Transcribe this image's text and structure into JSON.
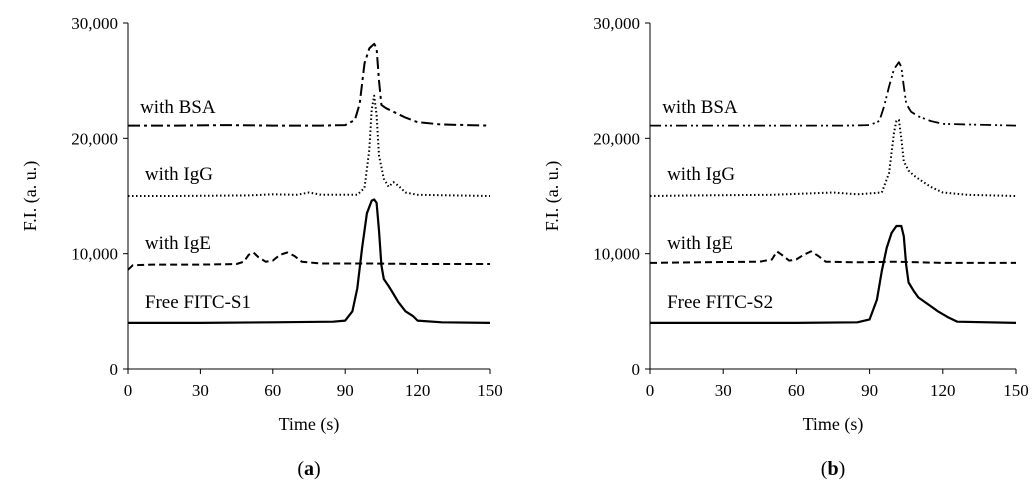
{
  "chart_data": [
    {
      "type": "line",
      "panel_label": "a",
      "xlabel": "Time (s)",
      "ylabel": "F.I. (a. u.)",
      "xlim": [
        0,
        150
      ],
      "ylim": [
        0,
        30000
      ],
      "xticks": [
        0,
        30,
        60,
        90,
        120,
        150
      ],
      "yticks": [
        0,
        10000,
        20000,
        30000
      ],
      "xtick_labels": [
        "0",
        "30",
        "60",
        "90",
        "120",
        "150"
      ],
      "ytick_labels": [
        "0",
        "10,000",
        "20,000",
        "30,000"
      ],
      "grid": false,
      "series": [
        {
          "name": "with BSA",
          "label_at": [
            5,
            22200
          ],
          "dash": "dashdot",
          "points": [
            [
              0,
              21100
            ],
            [
              20,
              21100
            ],
            [
              40,
              21150
            ],
            [
              60,
              21100
            ],
            [
              80,
              21100
            ],
            [
              90,
              21150
            ],
            [
              94,
              21600
            ],
            [
              96,
              23000
            ],
            [
              98,
              26500
            ],
            [
              100,
              27800
            ],
            [
              101,
              28000
            ],
            [
              102,
              28200
            ],
            [
              103,
              27800
            ],
            [
              104,
              25000
            ],
            [
              105,
              22900
            ],
            [
              107,
              22600
            ],
            [
              110,
              22300
            ],
            [
              115,
              21800
            ],
            [
              120,
              21400
            ],
            [
              130,
              21200
            ],
            [
              150,
              21100
            ]
          ]
        },
        {
          "name": "with IgG",
          "label_at": [
            7,
            16400
          ],
          "dash": "dotted",
          "points": [
            [
              0,
              15000
            ],
            [
              20,
              15000
            ],
            [
              50,
              15050
            ],
            [
              60,
              15150
            ],
            [
              70,
              15100
            ],
            [
              75,
              15300
            ],
            [
              80,
              15100
            ],
            [
              95,
              15100
            ],
            [
              98,
              15700
            ],
            [
              100,
              19000
            ],
            [
              101,
              22500
            ],
            [
              102,
              23700
            ],
            [
              103,
              22000
            ],
            [
              104,
              18500
            ],
            [
              106,
              16500
            ],
            [
              108,
              15800
            ],
            [
              110,
              16200
            ],
            [
              112,
              15900
            ],
            [
              115,
              15300
            ],
            [
              120,
              15100
            ],
            [
              150,
              15000
            ]
          ]
        },
        {
          "name": "with IgE",
          "label_at": [
            7,
            10400
          ],
          "dash": "dashed",
          "points": [
            [
              0,
              8600
            ],
            [
              2,
              9000
            ],
            [
              10,
              9050
            ],
            [
              30,
              9050
            ],
            [
              45,
              9100
            ],
            [
              48,
              9300
            ],
            [
              50,
              9900
            ],
            [
              52,
              10100
            ],
            [
              54,
              9700
            ],
            [
              57,
              9300
            ],
            [
              60,
              9400
            ],
            [
              63,
              9900
            ],
            [
              66,
              10100
            ],
            [
              69,
              9800
            ],
            [
              72,
              9300
            ],
            [
              80,
              9150
            ],
            [
              100,
              9150
            ],
            [
              120,
              9100
            ],
            [
              150,
              9100
            ]
          ]
        },
        {
          "name": "Free FITC-S1",
          "label_at": [
            7,
            5300
          ],
          "dash": "solid",
          "points": [
            [
              0,
              4000
            ],
            [
              30,
              4000
            ],
            [
              60,
              4050
            ],
            [
              85,
              4100
            ],
            [
              90,
              4200
            ],
            [
              93,
              5000
            ],
            [
              95,
              7000
            ],
            [
              97,
              10500
            ],
            [
              99,
              13500
            ],
            [
              101,
              14600
            ],
            [
              102,
              14700
            ],
            [
              103,
              14400
            ],
            [
              104,
              12000
            ],
            [
              105,
              9000
            ],
            [
              106,
              7800
            ],
            [
              108,
              7200
            ],
            [
              110,
              6500
            ],
            [
              112,
              5800
            ],
            [
              115,
              5000
            ],
            [
              118,
              4600
            ],
            [
              120,
              4200
            ],
            [
              130,
              4050
            ],
            [
              150,
              4000
            ]
          ]
        }
      ]
    },
    {
      "type": "line",
      "panel_label": "b",
      "xlabel": "Time (s)",
      "ylabel": "F.I. (a. u.)",
      "xlim": [
        0,
        150
      ],
      "ylim": [
        0,
        30000
      ],
      "xticks": [
        0,
        30,
        60,
        90,
        120,
        150
      ],
      "yticks": [
        0,
        10000,
        20000,
        30000
      ],
      "xtick_labels": [
        "0",
        "30",
        "60",
        "90",
        "120",
        "150"
      ],
      "ytick_labels": [
        "0",
        "10,000",
        "20,000",
        "30,000"
      ],
      "grid": false,
      "series": [
        {
          "name": "with BSA",
          "label_at": [
            5,
            22200
          ],
          "dash": "dashdotdot",
          "points": [
            [
              0,
              21100
            ],
            [
              20,
              21100
            ],
            [
              50,
              21100
            ],
            [
              80,
              21100
            ],
            [
              90,
              21150
            ],
            [
              94,
              21500
            ],
            [
              96,
              22800
            ],
            [
              98,
              24500
            ],
            [
              100,
              26000
            ],
            [
              102,
              26600
            ],
            [
              103,
              26200
            ],
            [
              104,
              24500
            ],
            [
              105,
              23000
            ],
            [
              107,
              22300
            ],
            [
              110,
              21900
            ],
            [
              115,
              21500
            ],
            [
              120,
              21250
            ],
            [
              150,
              21100
            ]
          ]
        },
        {
          "name": "with IgG",
          "label_at": [
            7,
            16400
          ],
          "dash": "dotted",
          "points": [
            [
              0,
              15000
            ],
            [
              20,
              15050
            ],
            [
              50,
              15100
            ],
            [
              75,
              15300
            ],
            [
              85,
              15150
            ],
            [
              95,
              15300
            ],
            [
              98,
              17000
            ],
            [
              100,
              20500
            ],
            [
              101,
              21500
            ],
            [
              102,
              21600
            ],
            [
              103,
              20000
            ],
            [
              104,
              18000
            ],
            [
              106,
              17200
            ],
            [
              108,
              16800
            ],
            [
              110,
              16500
            ],
            [
              115,
              15800
            ],
            [
              120,
              15300
            ],
            [
              130,
              15100
            ],
            [
              150,
              15000
            ]
          ]
        },
        {
          "name": "with IgE",
          "label_at": [
            7,
            10400
          ],
          "dash": "dashed",
          "points": [
            [
              0,
              9200
            ],
            [
              20,
              9250
            ],
            [
              45,
              9300
            ],
            [
              50,
              9500
            ],
            [
              52,
              10200
            ],
            [
              54,
              9900
            ],
            [
              57,
              9400
            ],
            [
              60,
              9500
            ],
            [
              63,
              9900
            ],
            [
              66,
              10200
            ],
            [
              69,
              9800
            ],
            [
              72,
              9300
            ],
            [
              85,
              9250
            ],
            [
              100,
              9300
            ],
            [
              120,
              9200
            ],
            [
              150,
              9200
            ]
          ]
        },
        {
          "name": "Free FITC-S2",
          "label_at": [
            7,
            5300
          ],
          "dash": "solid",
          "points": [
            [
              0,
              4000
            ],
            [
              30,
              4000
            ],
            [
              60,
              4000
            ],
            [
              85,
              4050
            ],
            [
              90,
              4300
            ],
            [
              93,
              6000
            ],
            [
              95,
              8500
            ],
            [
              97,
              10500
            ],
            [
              99,
              11800
            ],
            [
              101,
              12400
            ],
            [
              103,
              12400
            ],
            [
              104,
              11500
            ],
            [
              105,
              9000
            ],
            [
              106,
              7500
            ],
            [
              108,
              6800
            ],
            [
              110,
              6200
            ],
            [
              114,
              5600
            ],
            [
              118,
              5000
            ],
            [
              122,
              4500
            ],
            [
              126,
              4100
            ],
            [
              150,
              4000
            ]
          ]
        }
      ]
    }
  ]
}
